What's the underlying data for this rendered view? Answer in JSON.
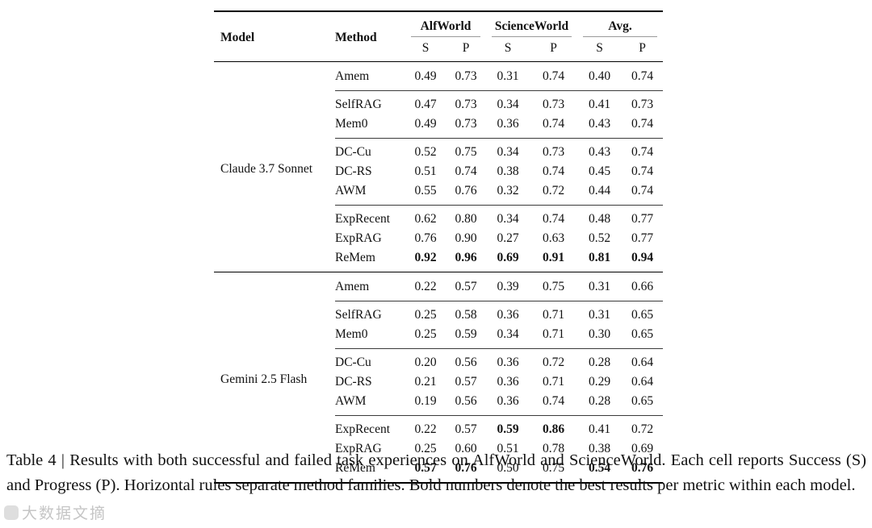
{
  "table": {
    "headers": {
      "model": "Model",
      "method": "Method",
      "groups": [
        {
          "label": "AlfWorld",
          "sub": [
            "S",
            "P"
          ]
        },
        {
          "label": "ScienceWorld",
          "sub": [
            "S",
            "P"
          ]
        },
        {
          "label": "Avg.",
          "sub": [
            "S",
            "P"
          ]
        }
      ]
    },
    "blocks": [
      {
        "model": "Claude 3.7 Sonnet",
        "families": [
          {
            "rows": [
              {
                "method": "Amem",
                "values": [
                  "0.49",
                  "0.73",
                  "0.31",
                  "0.74",
                  "0.40",
                  "0.74"
                ],
                "bold": []
              }
            ]
          },
          {
            "rows": [
              {
                "method": "SelfRAG",
                "values": [
                  "0.47",
                  "0.73",
                  "0.34",
                  "0.73",
                  "0.41",
                  "0.73"
                ],
                "bold": []
              },
              {
                "method": "Mem0",
                "values": [
                  "0.49",
                  "0.73",
                  "0.36",
                  "0.74",
                  "0.43",
                  "0.74"
                ],
                "bold": []
              }
            ]
          },
          {
            "rows": [
              {
                "method": "DC-Cu",
                "values": [
                  "0.52",
                  "0.75",
                  "0.34",
                  "0.73",
                  "0.43",
                  "0.74"
                ],
                "bold": []
              },
              {
                "method": "DC-RS",
                "values": [
                  "0.51",
                  "0.74",
                  "0.38",
                  "0.74",
                  "0.45",
                  "0.74"
                ],
                "bold": []
              },
              {
                "method": "AWM",
                "values": [
                  "0.55",
                  "0.76",
                  "0.32",
                  "0.72",
                  "0.44",
                  "0.74"
                ],
                "bold": []
              }
            ]
          },
          {
            "rows": [
              {
                "method": "ExpRecent",
                "values": [
                  "0.62",
                  "0.80",
                  "0.34",
                  "0.74",
                  "0.48",
                  "0.77"
                ],
                "bold": []
              },
              {
                "method": "ExpRAG",
                "values": [
                  "0.76",
                  "0.90",
                  "0.27",
                  "0.63",
                  "0.52",
                  "0.77"
                ],
                "bold": []
              },
              {
                "method": "ReMem",
                "values": [
                  "0.92",
                  "0.96",
                  "0.69",
                  "0.91",
                  "0.81",
                  "0.94"
                ],
                "bold": [
                  0,
                  1,
                  2,
                  3,
                  4,
                  5
                ]
              }
            ]
          }
        ]
      },
      {
        "model": "Gemini 2.5 Flash",
        "families": [
          {
            "rows": [
              {
                "method": "Amem",
                "values": [
                  "0.22",
                  "0.57",
                  "0.39",
                  "0.75",
                  "0.31",
                  "0.66"
                ],
                "bold": []
              }
            ]
          },
          {
            "rows": [
              {
                "method": "SelfRAG",
                "values": [
                  "0.25",
                  "0.58",
                  "0.36",
                  "0.71",
                  "0.31",
                  "0.65"
                ],
                "bold": []
              },
              {
                "method": "Mem0",
                "values": [
                  "0.25",
                  "0.59",
                  "0.34",
                  "0.71",
                  "0.30",
                  "0.65"
                ],
                "bold": []
              }
            ]
          },
          {
            "rows": [
              {
                "method": "DC-Cu",
                "values": [
                  "0.20",
                  "0.56",
                  "0.36",
                  "0.72",
                  "0.28",
                  "0.64"
                ],
                "bold": []
              },
              {
                "method": "DC-RS",
                "values": [
                  "0.21",
                  "0.57",
                  "0.36",
                  "0.71",
                  "0.29",
                  "0.64"
                ],
                "bold": []
              },
              {
                "method": "AWM",
                "values": [
                  "0.19",
                  "0.56",
                  "0.36",
                  "0.74",
                  "0.28",
                  "0.65"
                ],
                "bold": []
              }
            ]
          },
          {
            "rows": [
              {
                "method": "ExpRecent",
                "values": [
                  "0.22",
                  "0.57",
                  "0.59",
                  "0.86",
                  "0.41",
                  "0.72"
                ],
                "bold": [
                  2,
                  3
                ]
              },
              {
                "method": "ExpRAG",
                "values": [
                  "0.25",
                  "0.60",
                  "0.51",
                  "0.78",
                  "0.38",
                  "0.69"
                ],
                "bold": []
              },
              {
                "method": "ReMem",
                "values": [
                  "0.57",
                  "0.76",
                  "0.50",
                  "0.75",
                  "0.54",
                  "0.76"
                ],
                "bold": [
                  0,
                  1,
                  4,
                  5
                ]
              }
            ]
          }
        ]
      }
    ]
  },
  "caption": "Table 4 | Results with both successful and failed task experiences on AlfWorld and ScienceWorld. Each cell reports Success (S) and Progress (P). Horizontal rules separate method families.  Bold numbers denote the best results per metric within each model.",
  "watermark": {
    "text": "大数据文摘"
  }
}
